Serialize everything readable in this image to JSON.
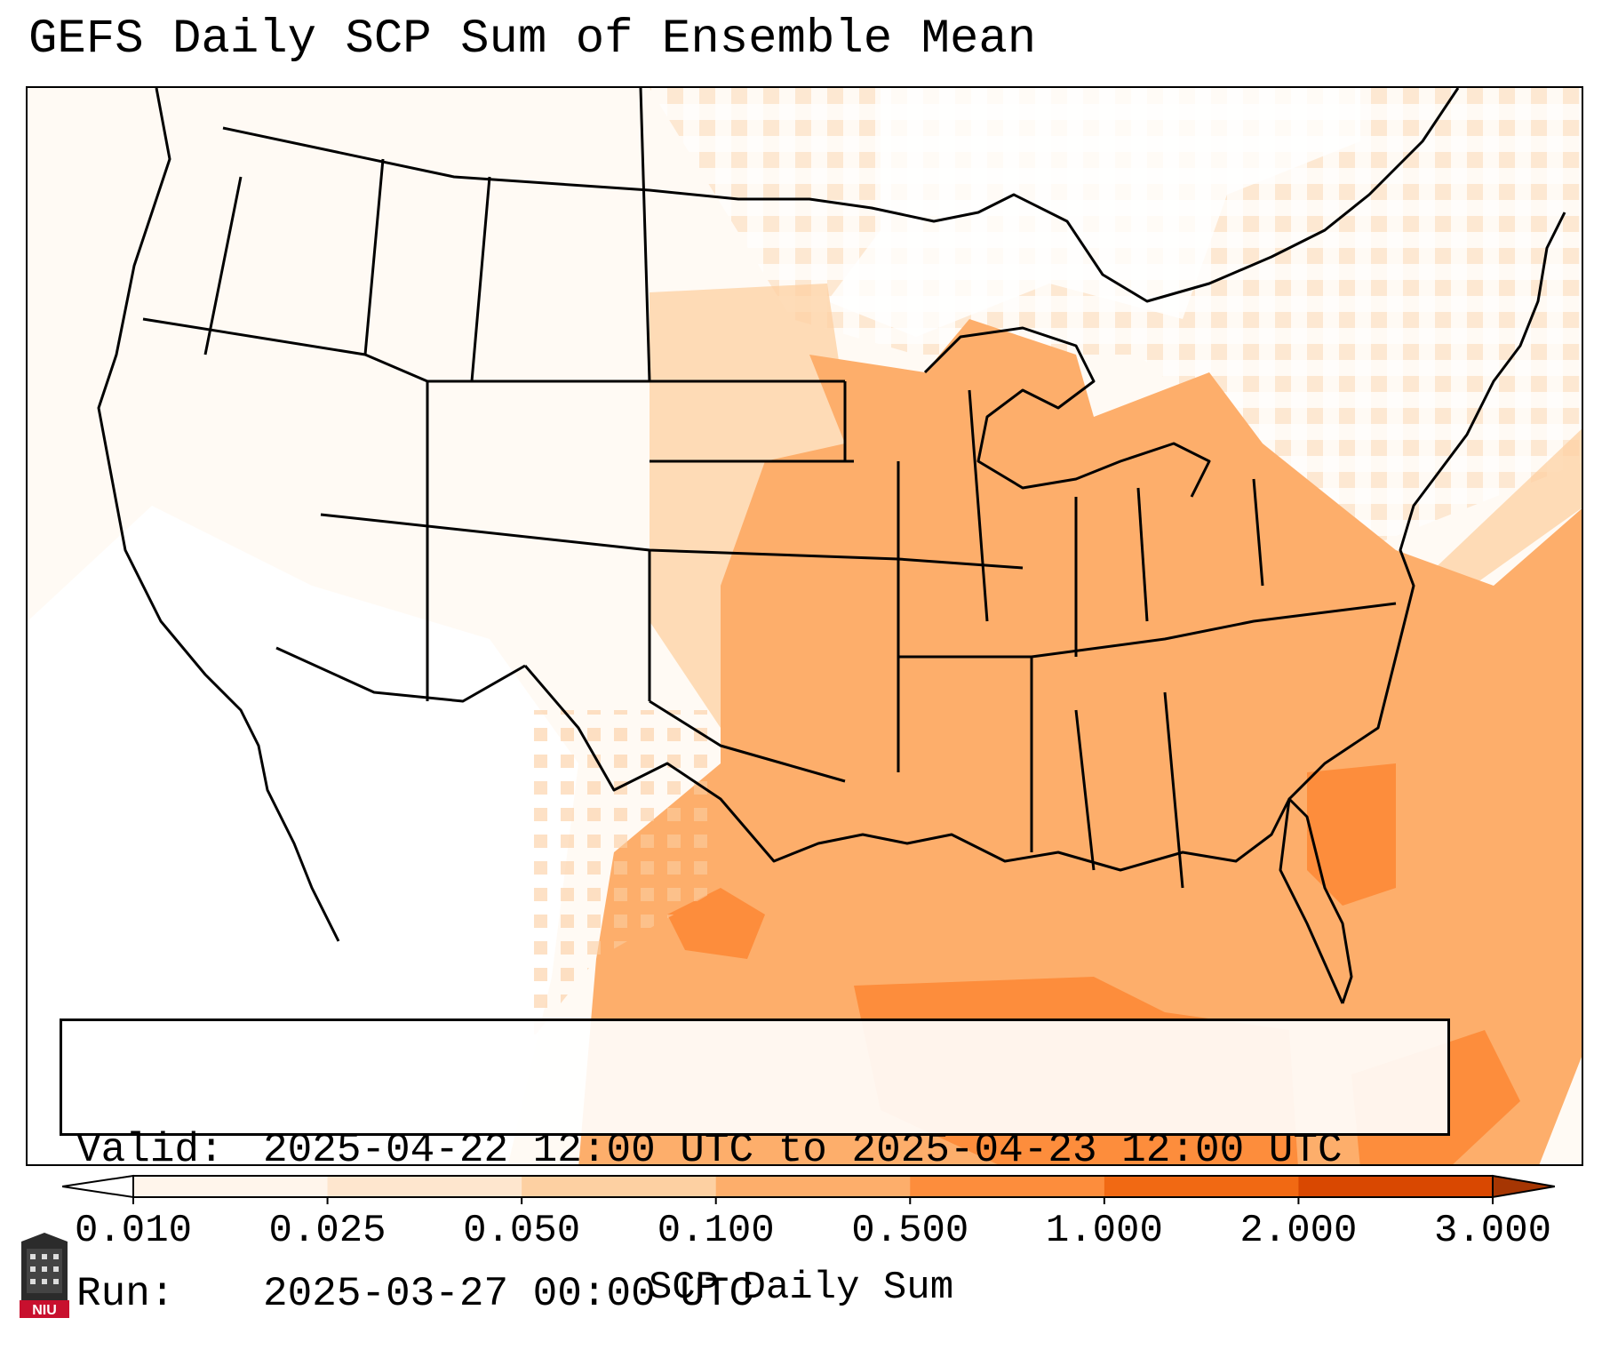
{
  "title": "GEFS Daily SCP Sum of Ensemble Mean",
  "info": {
    "valid_label": "Valid:",
    "valid_value": "2025-04-22 12:00 UTC to 2025-04-23 12:00 UTC",
    "run_label": "Run:",
    "run_value": "2025-03-27 00:00 UTC"
  },
  "colorbar": {
    "label": "SCP Daily Sum",
    "ticks": [
      "0.010",
      "0.025",
      "0.050",
      "0.100",
      "0.500",
      "1.000",
      "2.000",
      "3.000"
    ],
    "colors": [
      "#fff5eb",
      "#fee6ce",
      "#fdd0a2",
      "#fdae6b",
      "#fd8d3c",
      "#f16913",
      "#d94801"
    ],
    "extend_min_color": "#ffffff",
    "extend_max_color": "#a63603"
  },
  "map": {
    "region": "Continental United States",
    "field": "SCP Daily Sum",
    "zones": [
      {
        "region": "Southeast / Gulf of Mexico core",
        "level": "0.500"
      },
      {
        "region": "Central and Eastern US",
        "level": "0.100"
      },
      {
        "region": "Northern Plains",
        "level": "0.050"
      },
      {
        "region": "Western US scattered",
        "level": "0.025"
      }
    ]
  },
  "logo": {
    "text": "NIU",
    "icon": "university-tower-icon"
  }
}
